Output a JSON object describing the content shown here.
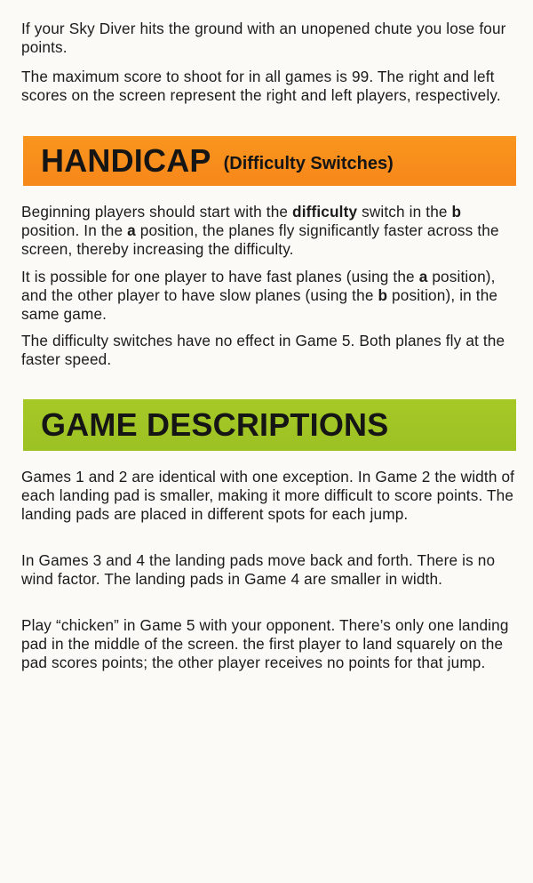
{
  "intro": {
    "p1": "If your Sky Diver hits the ground with an unopened chute you lose four points.",
    "p2": "The maximum score to shoot for in all games is 99. The right and left scores on the screen represent the right and left players, respectively."
  },
  "handicap": {
    "title": "HANDICAP",
    "subtitle": "(Difficulty Switches)",
    "banner_color": "#f7871a",
    "p1": {
      "t1": "Beginning players should start with the ",
      "b1": "difficulty",
      "t2": " switch in the ",
      "b2": "b",
      "t3": " position. In the ",
      "b3": "a",
      "t4": " position, the planes fly significantly faster across the screen, thereby increasing the difficulty."
    },
    "p2": {
      "t1": "It is possible for one player to have fast planes (using the ",
      "b1": "a",
      "t2": " position), and the other player to have slow planes (using the ",
      "b2": "b",
      "t3": " position), in the same game."
    },
    "p3": "The difficulty switches have no effect in Game 5.  Both planes fly at the faster speed."
  },
  "game_descriptions": {
    "title": "GAME DESCRIPTIONS",
    "banner_color": "#9cc123",
    "p1": "Games 1 and 2 are identical with one exception. In Game 2 the width of each landing pad is smaller, making it more difficult to score points. The landing pads are placed in different spots for each jump.",
    "p2": "In Games 3 and 4 the landing pads move back and forth. There is no wind factor. The landing pads in Game 4 are smaller in width.",
    "p3": "Play “chicken” in Game 5 with your opponent. There’s only one landing pad in the middle of the screen. the first player to land squarely on the pad scores points; the other player receives no points for that jump."
  }
}
